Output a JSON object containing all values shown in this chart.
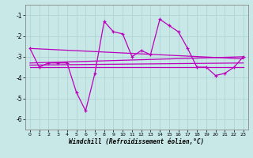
{
  "xlabel": "Windchill (Refroidissement éolien,°C)",
  "background_color": "#c8e8e8",
  "grid_color": "#b0d4d4",
  "line_color": "#bb00bb",
  "x_data": [
    0,
    1,
    2,
    3,
    4,
    5,
    6,
    7,
    8,
    9,
    10,
    11,
    12,
    13,
    14,
    15,
    16,
    17,
    18,
    19,
    20,
    21,
    22,
    23
  ],
  "line1": [
    -2.6,
    -3.5,
    -3.3,
    -3.3,
    -3.3,
    -4.7,
    -5.6,
    -3.8,
    -1.3,
    -1.8,
    -1.9,
    -3.0,
    -2.7,
    -2.9,
    -1.2,
    -1.5,
    -1.8,
    -2.6,
    -3.5,
    -3.5,
    -3.9,
    -3.8,
    -3.5,
    -3.0
  ],
  "straight_lines": [
    {
      "x": [
        0,
        23
      ],
      "y": [
        -3.5,
        -3.5
      ]
    },
    {
      "x": [
        0,
        23
      ],
      "y": [
        -3.4,
        -3.3
      ]
    },
    {
      "x": [
        0,
        23
      ],
      "y": [
        -3.3,
        -3.0
      ]
    },
    {
      "x": [
        0,
        23
      ],
      "y": [
        -2.6,
        -3.1
      ]
    }
  ],
  "ylim": [
    -6.5,
    -0.5
  ],
  "xlim": [
    -0.5,
    23.5
  ],
  "yticks": [
    -6,
    -5,
    -4,
    -3,
    -2,
    -1
  ],
  "xticks": [
    0,
    1,
    2,
    3,
    4,
    5,
    6,
    7,
    8,
    9,
    10,
    11,
    12,
    13,
    14,
    15,
    16,
    17,
    18,
    19,
    20,
    21,
    22,
    23
  ]
}
